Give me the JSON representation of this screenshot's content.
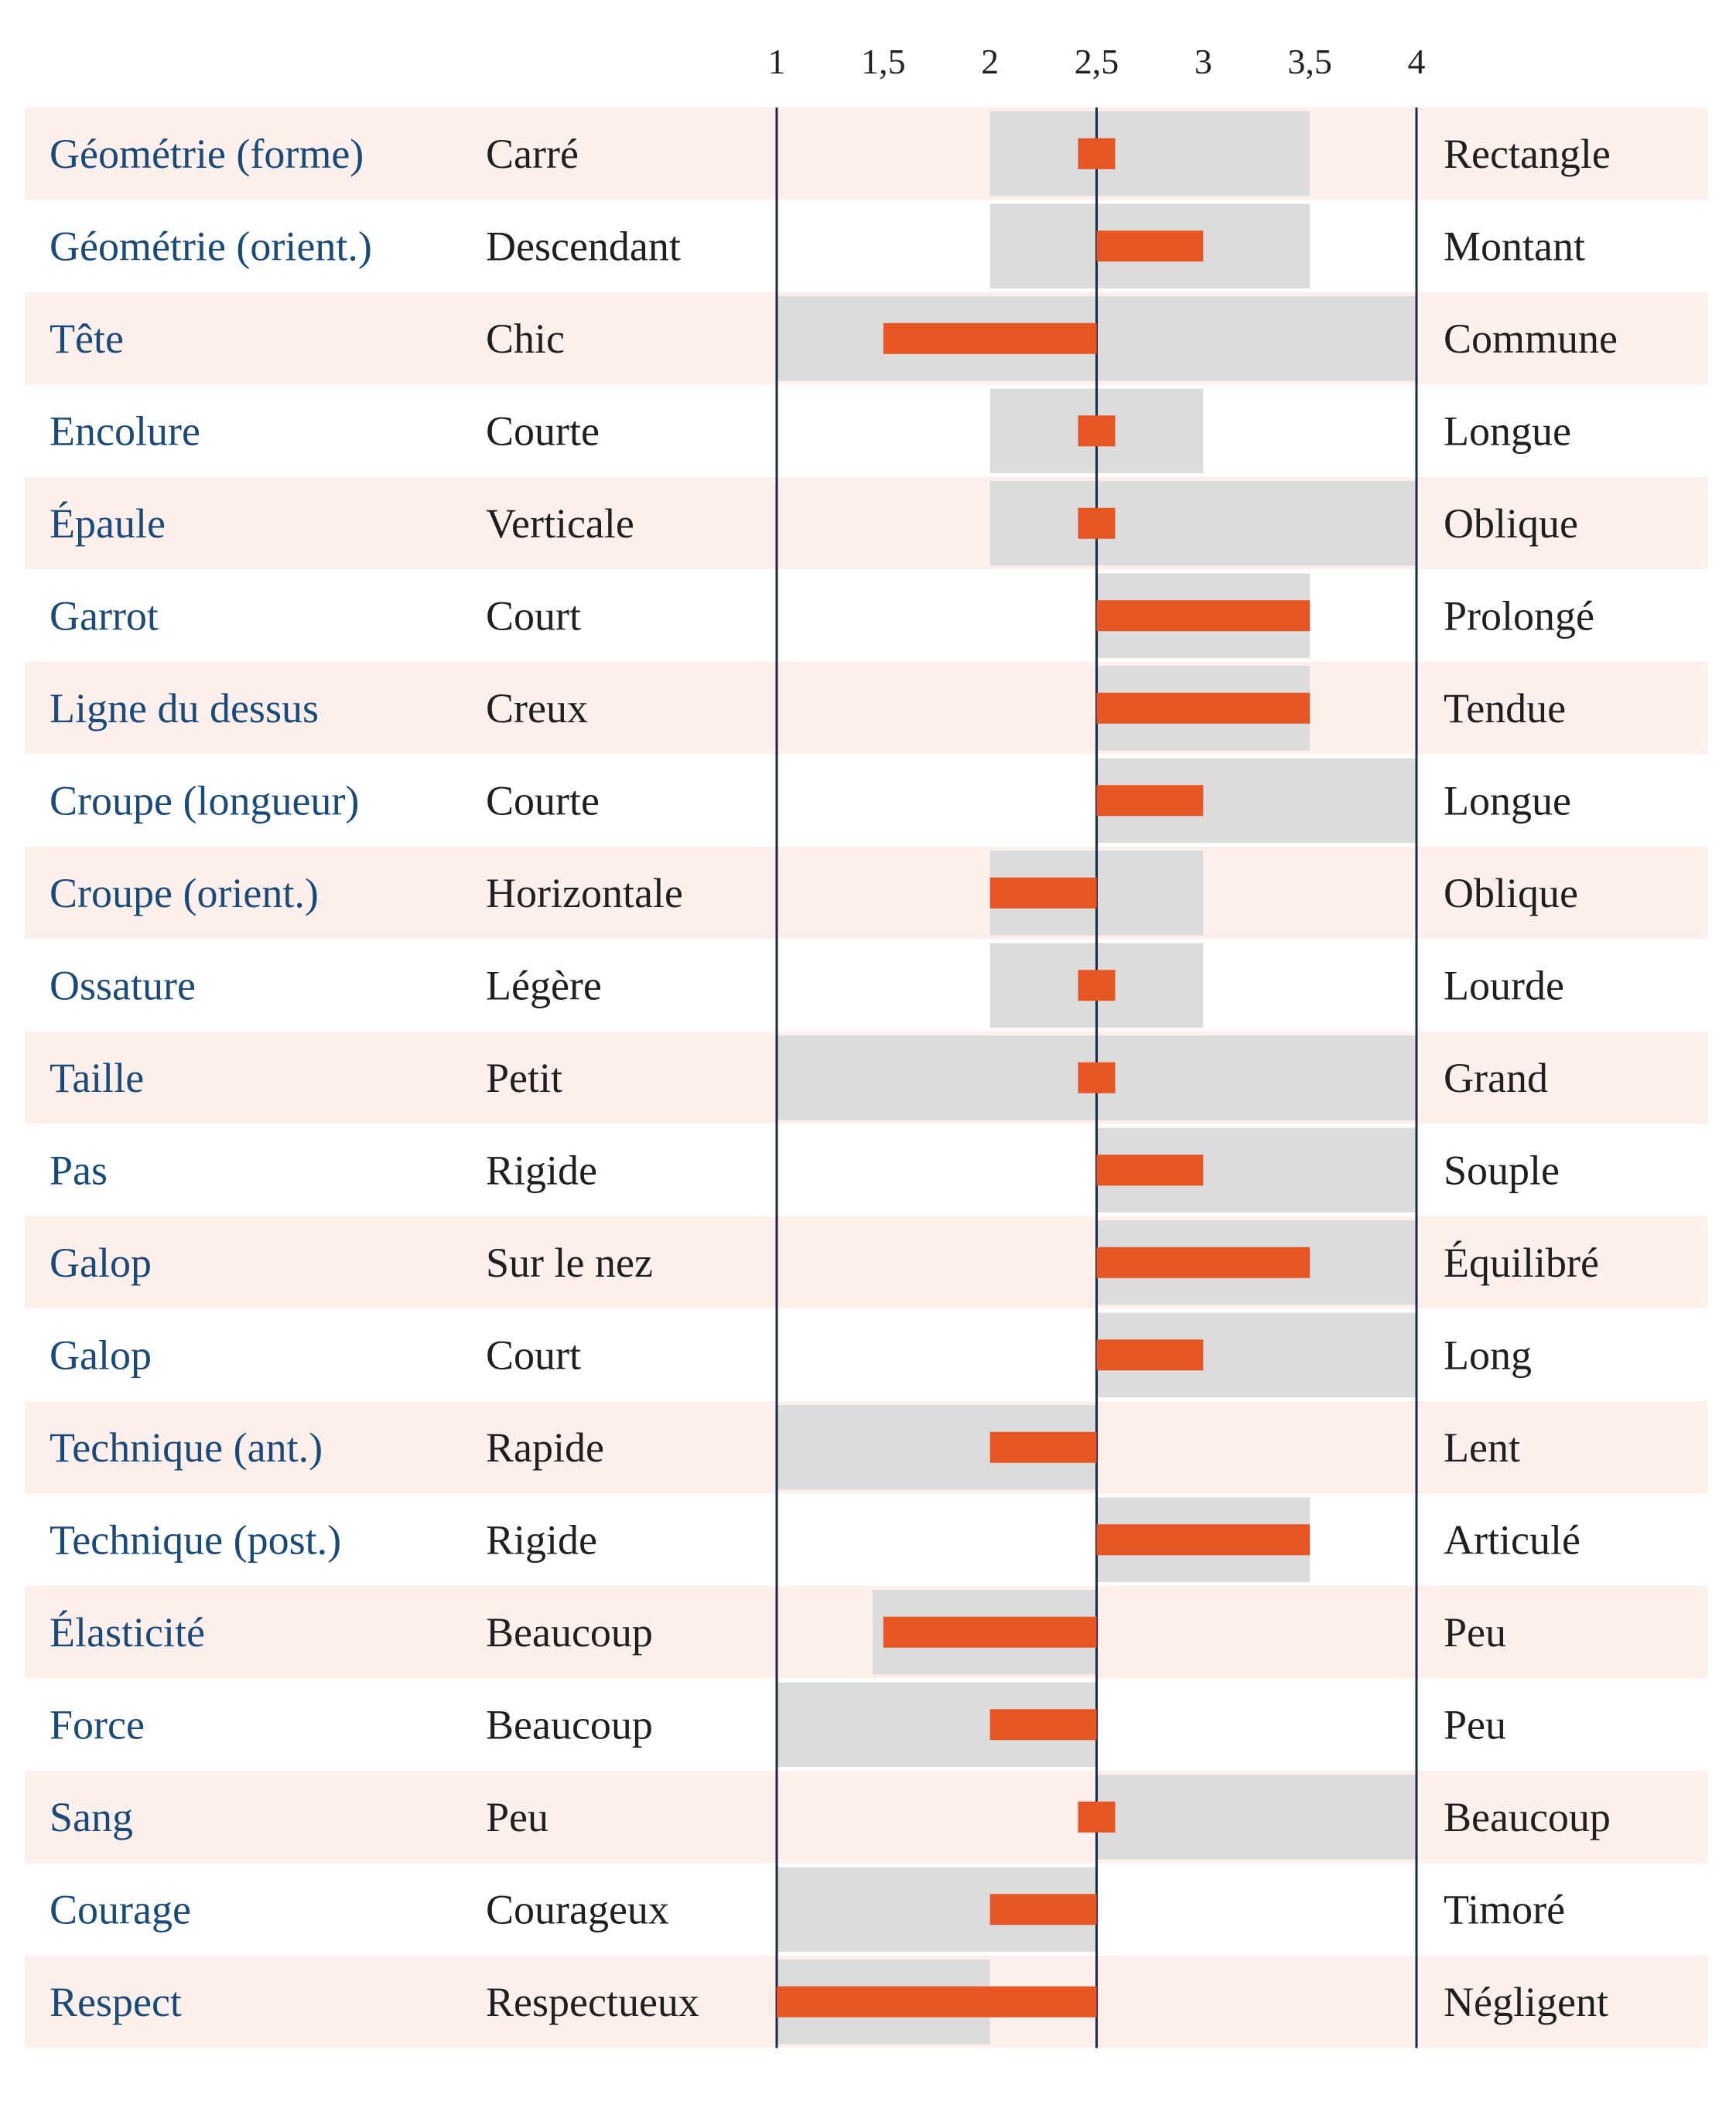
{
  "chart_data": {
    "type": "bar",
    "xlim": [
      1,
      4
    ],
    "x_ticks": [
      "1",
      "1,5",
      "2",
      "2,5",
      "3",
      "3,5",
      "4"
    ],
    "x_tick_values": [
      1,
      1.5,
      2,
      2.5,
      3,
      3.5,
      4
    ],
    "reference_value": 2.5,
    "grid": false,
    "colors": {
      "value_bar": "#e85524",
      "range_band": "#dcdcdc",
      "row_stripe": "#fdf0ec",
      "trait_text": "#1a4a7a",
      "axis_line": "#1a2a48"
    },
    "rows": [
      {
        "trait": "Géométrie (forme)",
        "low": "Carré",
        "high": "Rectangle",
        "range": [
          2,
          3.5
        ],
        "value": 2.5
      },
      {
        "trait": "Géométrie (orient.)",
        "low": "Descendant",
        "high": "Montant",
        "range": [
          2,
          3.5
        ],
        "value": 3
      },
      {
        "trait": "Tête",
        "low": "Chic",
        "high": "Commune",
        "range": [
          1,
          4
        ],
        "value": 1.5
      },
      {
        "trait": "Encolure",
        "low": "Courte",
        "high": "Longue",
        "range": [
          2,
          3
        ],
        "value": 2.5
      },
      {
        "trait": "Épaule",
        "low": "Verticale",
        "high": "Oblique",
        "range": [
          2,
          4
        ],
        "value": 2.5
      },
      {
        "trait": "Garrot",
        "low": "Court",
        "high": "Prolongé",
        "range": [
          2.5,
          3.5
        ],
        "value": 3.5
      },
      {
        "trait": "Ligne du dessus",
        "low": "Creux",
        "high": "Tendue",
        "range": [
          2.5,
          3.5
        ],
        "value": 3.5
      },
      {
        "trait": "Croupe (longueur)",
        "low": "Courte",
        "high": "Longue",
        "range": [
          2.5,
          4
        ],
        "value": 3
      },
      {
        "trait": "Croupe (orient.)",
        "low": "Horizontale",
        "high": "Oblique",
        "range": [
          2,
          3
        ],
        "value": 2
      },
      {
        "trait": "Ossature",
        "low": "Légère",
        "high": "Lourde",
        "range": [
          2,
          3
        ],
        "value": 2.5
      },
      {
        "trait": "Taille",
        "low": "Petit",
        "high": "Grand",
        "range": [
          1,
          4
        ],
        "value": 2.5
      },
      {
        "trait": "Pas",
        "low": "Rigide",
        "high": "Souple",
        "range": [
          2.5,
          4
        ],
        "value": 3
      },
      {
        "trait": "Galop",
        "low": "Sur le nez",
        "high": "Équilibré",
        "range": [
          2.5,
          4
        ],
        "value": 3.5
      },
      {
        "trait": "Galop",
        "low": "Court",
        "high": "Long",
        "range": [
          2.5,
          4
        ],
        "value": 3
      },
      {
        "trait": "Technique (ant.)",
        "low": "Rapide",
        "high": "Lent",
        "range": [
          1,
          2.5
        ],
        "value": 2
      },
      {
        "trait": "Technique (post.)",
        "low": "Rigide",
        "high": "Articulé",
        "range": [
          2.5,
          3.5
        ],
        "value": 3.5
      },
      {
        "trait": "Élasticité",
        "low": "Beaucoup",
        "high": "Peu",
        "range": [
          1.45,
          2.5
        ],
        "value": 1.5
      },
      {
        "trait": "Force",
        "low": "Beaucoup",
        "high": "Peu",
        "range": [
          1,
          2.5
        ],
        "value": 2
      },
      {
        "trait": "Sang",
        "low": "Peu",
        "high": "Beaucoup",
        "range": [
          2.5,
          4
        ],
        "value": 2.5
      },
      {
        "trait": "Courage",
        "low": "Courageux",
        "high": "Timoré",
        "range": [
          1,
          2.5
        ],
        "value": 2
      },
      {
        "trait": "Respect",
        "low": "Respectueux",
        "high": "Négligent",
        "range": [
          1,
          2
        ],
        "value": 1
      }
    ]
  }
}
